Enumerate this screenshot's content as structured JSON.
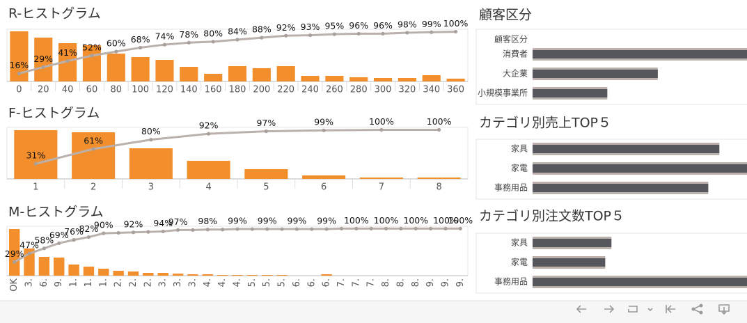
{
  "chart_data": [
    {
      "type": "pareto",
      "title": "R-ヒストグラム",
      "categories": [
        "0",
        "20",
        "40",
        "60",
        "80",
        "100",
        "120",
        "140",
        "160",
        "180",
        "200",
        "220",
        "240",
        "260",
        "280",
        "300",
        "320",
        "340",
        "360"
      ],
      "values": [
        72,
        63,
        55,
        52,
        40,
        35,
        31,
        21,
        11,
        22,
        19,
        22,
        8,
        8,
        6,
        5,
        5,
        9,
        4
      ],
      "color": "#f28e2b",
      "ylim": [
        0,
        75
      ],
      "line": {
        "values": [
          16,
          29,
          41,
          52,
          60,
          68,
          74,
          78,
          80,
          84,
          88,
          92,
          93,
          95,
          96,
          96,
          98,
          99,
          100
        ],
        "value_labels": [
          "16%",
          "29%",
          "41%",
          "52%",
          "60%",
          "68%",
          "74%",
          "78%",
          "80%",
          "84%",
          "88%",
          "92%",
          "93%",
          "95%",
          "96%",
          "96%",
          "98%",
          "99%",
          "100%"
        ],
        "color": "#bab0ac"
      },
      "y2lim": [
        0,
        105
      ]
    },
    {
      "type": "pareto",
      "title": "F-ヒストグラム",
      "categories": [
        "1",
        "2",
        "3",
        "4",
        "5",
        "6",
        "7",
        "8"
      ],
      "values": [
        70,
        67,
        44,
        26,
        14,
        5,
        2,
        2
      ],
      "color": "#f28e2b",
      "ylim": [
        0,
        74
      ],
      "line": {
        "values": [
          31,
          61,
          80,
          92,
          97,
          99,
          100,
          100
        ],
        "value_labels": [
          "31%",
          "61%",
          "80%",
          "92%",
          "97%",
          "99%",
          "100%",
          "100%"
        ],
        "color": "#bab0ac"
      },
      "y2lim": [
        0,
        105
      ]
    },
    {
      "type": "pareto",
      "title": "M-ヒストグラム",
      "categories": [
        "OK",
        "3.",
        "6.",
        "9.",
        "1.",
        "1.",
        "1.",
        "2.",
        "2.",
        "2.",
        "3.",
        "3.",
        "3.",
        "4.",
        "4.",
        "4.",
        "5.",
        "5.",
        "5.",
        "6.",
        "6.",
        "6.",
        "7.",
        "7.",
        "7.",
        "8.",
        "8.",
        "8.",
        "9.",
        "9.",
        "9."
      ],
      "values": [
        67,
        39,
        27,
        26,
        16,
        13,
        10,
        7,
        6,
        4,
        4,
        3,
        2,
        2,
        1,
        1,
        1,
        1,
        1,
        0,
        0,
        2,
        0,
        0,
        0,
        0,
        0,
        0,
        0,
        0,
        0
      ],
      "color": "#f28e2b",
      "ylim": [
        0,
        71
      ],
      "rotate_labels": true,
      "line": {
        "values": [
          29,
          47,
          58,
          69,
          76,
          82,
          90,
          91,
          92,
          93,
          94,
          97,
          97,
          98,
          98,
          99,
          99,
          99,
          99,
          99,
          99,
          99,
          100,
          100,
          100,
          100,
          100,
          100,
          100,
          100,
          100
        ],
        "value_labels": [
          "29%",
          "47%",
          "58%",
          "69%",
          "76%",
          "82%",
          "90%",
          null,
          "92%",
          null,
          "94%",
          "97%",
          null,
          "98%",
          null,
          "99%",
          null,
          "99%",
          null,
          "99%",
          null,
          "99%",
          null,
          "100%",
          null,
          "100%",
          null,
          "100%",
          null,
          "100%",
          "100%"
        ],
        "color": "#bab0ac"
      },
      "y2lim": [
        0,
        105
      ]
    },
    {
      "type": "hbar",
      "title": "顧客区分",
      "column_header": "顧客区分",
      "categories": [
        "消費者",
        "大企業",
        "小規模事業所"
      ],
      "values": [
        310,
        181,
        108
      ],
      "color": "#55575d",
      "back_color": "#bcb0ab",
      "xlim": [
        0,
        310
      ]
    },
    {
      "type": "hbar",
      "title": "カテゴリ別売上TOP５",
      "categories": [
        "家具",
        "家電",
        "事務用品"
      ],
      "values": [
        270,
        310,
        254
      ],
      "color": "#55575d",
      "back_color": "#bcb0ab",
      "xlim": [
        0,
        310
      ]
    },
    {
      "type": "hbar",
      "title": "カテゴリ別注文数TOP５",
      "categories": [
        "家具",
        "家電",
        "事務用品"
      ],
      "values": [
        114,
        105,
        310
      ],
      "color": "#55575d",
      "back_color": "#bcb0ab",
      "xlim": [
        0,
        310
      ]
    }
  ]
}
